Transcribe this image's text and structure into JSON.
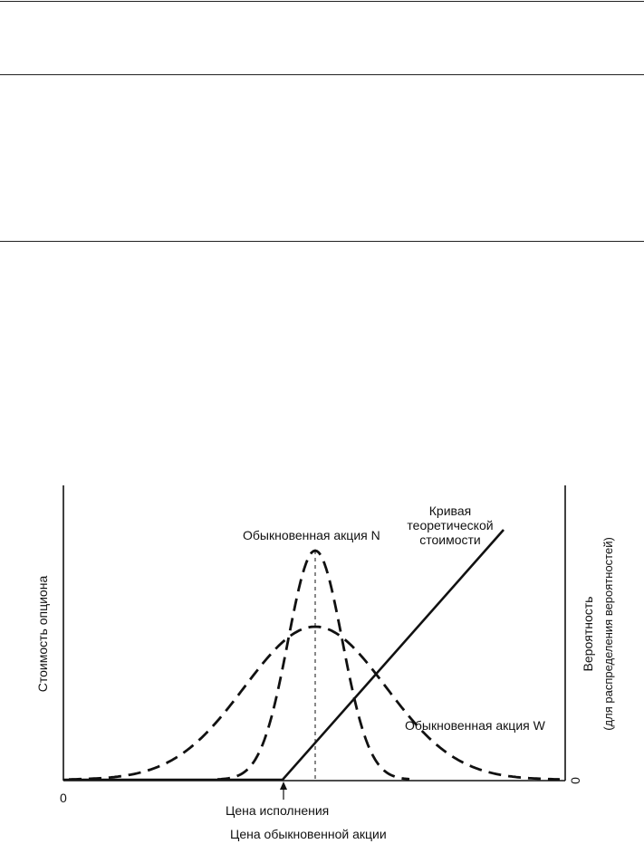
{
  "chart_data": {
    "type": "line",
    "title": "",
    "ylabel_left": "Стоимость опциона",
    "ylabel_right": "Вероятность",
    "ylabel_right_sub": "(для распределения вероятностей)",
    "xlabel": "Цена обыкновенной акции",
    "x_origin_label": "0",
    "y_right_origin_label": "0",
    "strike_label": "Цена исполнения",
    "theoretical_curve_label": [
      "Кривая",
      "теоретической",
      "стоимости"
    ],
    "annotations": {
      "stock_n": "Обыкновенная акция N",
      "stock_w": "Обыкновенная акция W"
    },
    "series": [
      {
        "name": "Кривая теоретической стоимости",
        "style": "solid",
        "description_points": [
          [
            0,
            0
          ],
          [
            1,
            0
          ],
          [
            2.2,
            1
          ]
        ]
      },
      {
        "name": "Обыкновенная акция N",
        "style": "dashed",
        "shape": "narrow normal distribution"
      },
      {
        "name": "Обыкновенная акция W",
        "style": "dashed",
        "shape": "wide normal distribution"
      }
    ]
  },
  "colors": {
    "ink": "#111111",
    "background": "#ffffff"
  }
}
